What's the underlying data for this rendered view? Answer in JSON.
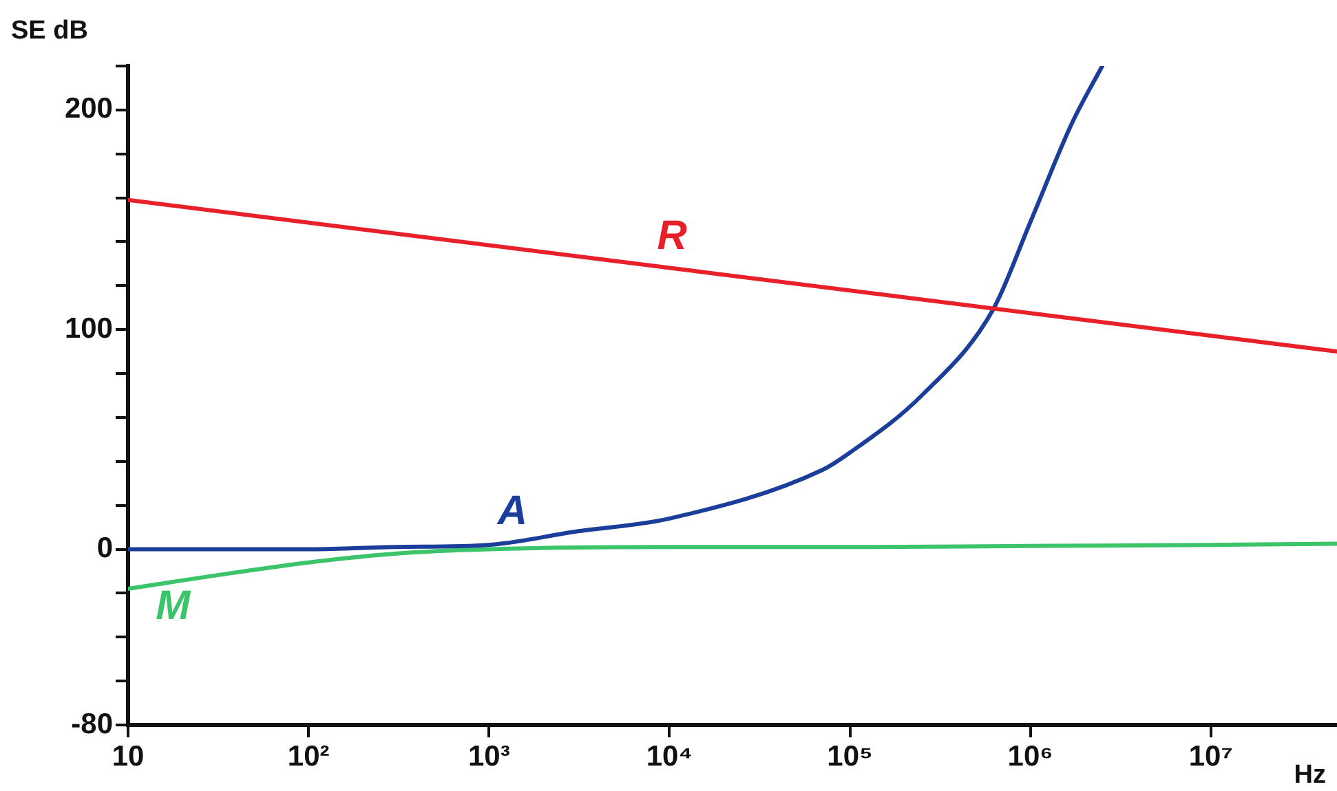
{
  "chart_data": {
    "type": "line",
    "xlabel": "Hz",
    "ylabel": "SE dB",
    "log": "x",
    "grid": false,
    "legend": false,
    "marker": "none",
    "line_style": "solid",
    "xlim": [
      10,
      50000000
    ],
    "ylim": [
      -80,
      220
    ],
    "xticks": [
      10,
      {
        "value": 100,
        "label": "10²"
      },
      {
        "value": 1000,
        "label": "10³"
      },
      {
        "value": 10000,
        "label": "10⁴"
      },
      {
        "value": 100000,
        "label": "10⁵"
      },
      {
        "value": 1000000,
        "label": "10⁶"
      },
      {
        "value": 10000000,
        "label": "10⁷"
      }
    ],
    "yticks": [
      -80,
      {
        "value": -60,
        "label": null
      },
      {
        "value": -40,
        "label": null
      },
      {
        "value": -20,
        "label": null
      },
      0,
      {
        "value": 20,
        "label": null
      },
      {
        "value": 40,
        "label": null
      },
      {
        "value": 60,
        "label": null
      },
      {
        "value": 80,
        "label": null
      },
      100,
      {
        "value": 120,
        "label": null
      },
      {
        "value": 140,
        "label": null
      },
      {
        "value": 160,
        "label": null
      },
      {
        "value": 180,
        "label": null
      },
      200,
      {
        "value": 220,
        "label": null
      }
    ],
    "series": [
      {
        "name": "R",
        "color": "#e8202a",
        "x": [
          10,
          50000000
        ],
        "values": [
          159,
          90
        ]
      },
      {
        "name": "A",
        "color": "#1a3e9a",
        "x": [
          10,
          100,
          300,
          1000,
          3000,
          10000,
          70000,
          100000,
          250000,
          620000,
          1000000,
          1700000,
          2500000
        ],
        "values": [
          0,
          0,
          1,
          2,
          8,
          14,
          36,
          44,
          70,
          109,
          149,
          194,
          220
        ]
      },
      {
        "name": "M",
        "color": "#3cc46a",
        "x": [
          10,
          30,
          100,
          300,
          1000,
          10000,
          100000,
          1000000,
          10000000,
          50000000
        ],
        "values": [
          -18,
          -12,
          -6,
          -2,
          0,
          1,
          1,
          1.5,
          2,
          2.5
        ]
      }
    ]
  }
}
